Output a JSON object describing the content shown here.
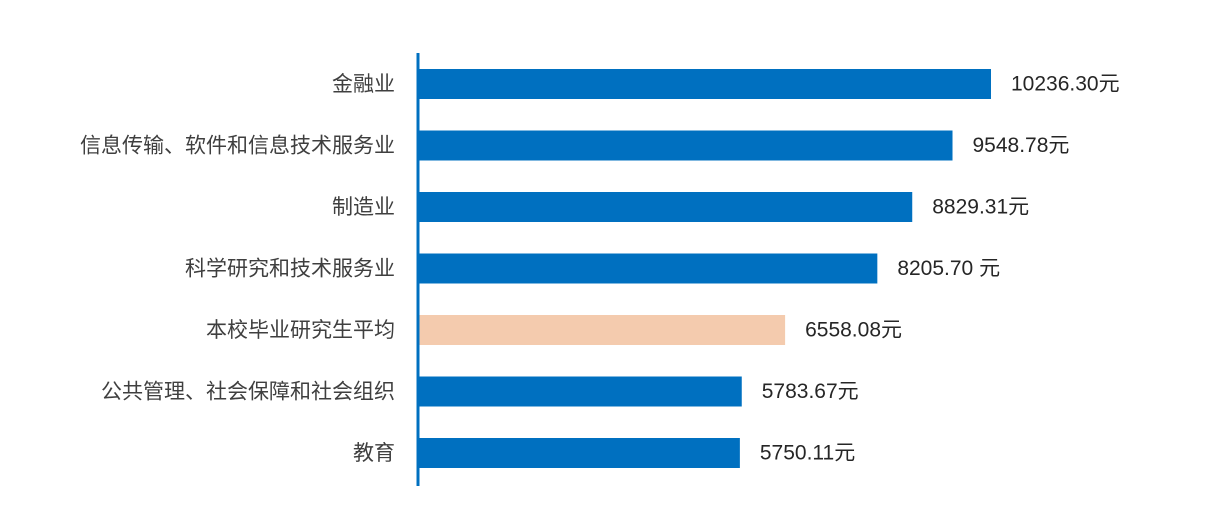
{
  "chart_data": {
    "type": "bar",
    "orientation": "horizontal",
    "categories": [
      "金融业",
      "信息传输、软件和信息技术服务业",
      "制造业",
      "科学研究和技术服务业",
      "本校毕业研究生平均",
      "公共管理、社会保障和社会组织",
      "教育"
    ],
    "values": [
      10236.3,
      9548.78,
      8829.31,
      8205.7,
      6558.08,
      5783.67,
      5750.11
    ],
    "data_labels": [
      "10236.30元",
      "9548.78元",
      "8829.31元",
      "8205.70 元",
      "6558.08元",
      "5783.67元",
      "5750.11元"
    ],
    "highlight_index": 4,
    "colors": {
      "bar": "#0070C0",
      "highlight": "#F4CBAE",
      "axis": "#0070C0",
      "category_text": "#3F3F3F",
      "value_text": "#262626"
    },
    "xlim": [
      0,
      10236.3
    ],
    "grid": false,
    "legend": "none"
  }
}
